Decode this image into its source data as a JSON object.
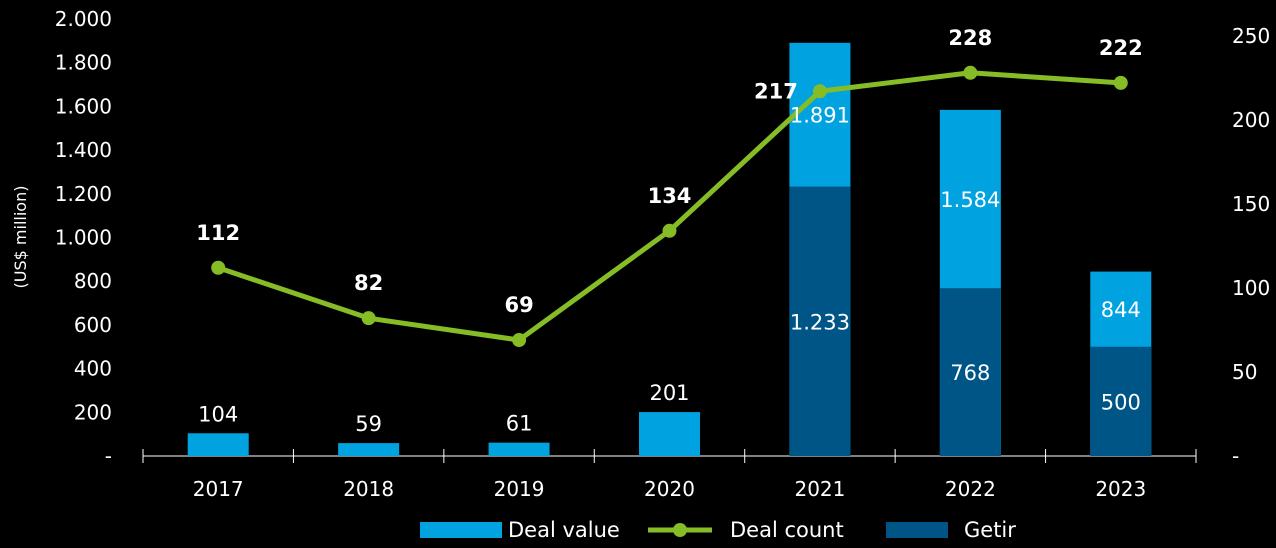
{
  "chart_data": {
    "type": "bar",
    "categories": [
      "2017",
      "2018",
      "2019",
      "2020",
      "2021",
      "2022",
      "2023"
    ],
    "ylabel": "(US$ million)",
    "ylim": [
      0,
      2000
    ],
    "y_ticks": [
      "-",
      "200",
      "400",
      "600",
      "800",
      "1.000",
      "1.200",
      "1.400",
      "1.600",
      "1.800",
      "2.000"
    ],
    "y2lim": [
      0,
      260
    ],
    "y2_ticks": [
      "-",
      "50",
      "100",
      "150",
      "200",
      "250"
    ],
    "grid": false,
    "legend_position": "bottom",
    "series": [
      {
        "name": "Deal value",
        "kind": "bar",
        "color": "#00a3e0",
        "values": [
          104,
          59,
          61,
          201,
          1891,
          1584,
          844
        ],
        "labels": [
          "104",
          "59",
          "61",
          "201",
          "1.891",
          "1.584",
          "844"
        ]
      },
      {
        "name": "Getir",
        "kind": "bar-overlay",
        "color": "#005587",
        "values": [
          0,
          0,
          0,
          0,
          1233,
          768,
          500
        ],
        "labels": [
          "",
          "",
          "",
          "",
          "1.233",
          "768",
          "500"
        ]
      },
      {
        "name": "Deal count",
        "kind": "line",
        "axis": "secondary",
        "color": "#86bc25",
        "values": [
          112,
          82,
          69,
          134,
          217,
          228,
          222
        ],
        "labels": [
          "112",
          "82",
          "69",
          "134",
          "217",
          "228",
          "222"
        ]
      }
    ]
  }
}
